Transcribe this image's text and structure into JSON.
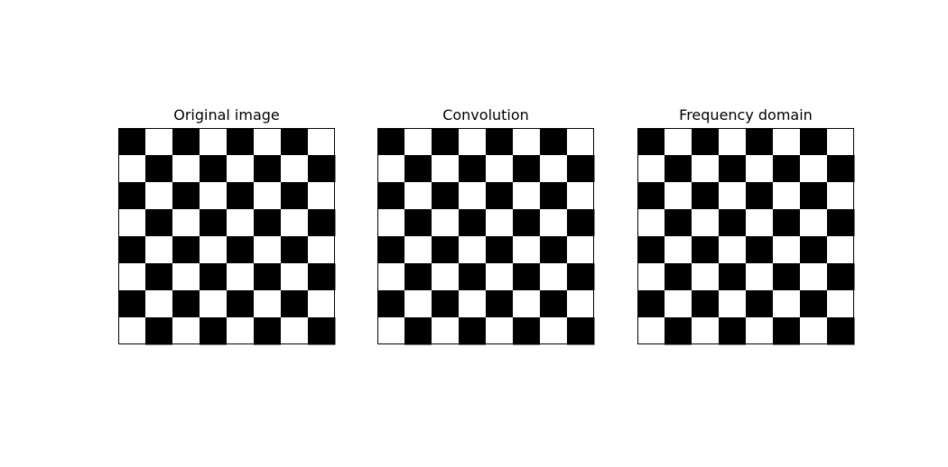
{
  "chart_data": [
    {
      "type": "heatmap",
      "title": "Original image",
      "grid_size": [
        8,
        8
      ],
      "colormap": "gray",
      "values": [
        [
          0,
          1,
          0,
          1,
          0,
          1,
          0,
          1
        ],
        [
          1,
          0,
          1,
          0,
          1,
          0,
          1,
          0
        ],
        [
          0,
          1,
          0,
          1,
          0,
          1,
          0,
          1
        ],
        [
          1,
          0,
          1,
          0,
          1,
          0,
          1,
          0
        ],
        [
          0,
          1,
          0,
          1,
          0,
          1,
          0,
          1
        ],
        [
          1,
          0,
          1,
          0,
          1,
          0,
          1,
          0
        ],
        [
          0,
          1,
          0,
          1,
          0,
          1,
          0,
          1
        ],
        [
          1,
          0,
          1,
          0,
          1,
          0,
          1,
          0
        ]
      ],
      "axes_ticks": false
    },
    {
      "type": "heatmap",
      "title": "Convolution",
      "grid_size": [
        8,
        8
      ],
      "colormap": "gray",
      "values": [
        [
          0,
          1,
          0,
          1,
          0,
          1,
          0,
          1
        ],
        [
          1,
          0,
          1,
          0,
          1,
          0,
          1,
          0
        ],
        [
          0,
          1,
          0,
          1,
          0,
          1,
          0,
          1
        ],
        [
          1,
          0,
          1,
          0,
          1,
          0,
          1,
          0
        ],
        [
          0,
          1,
          0,
          1,
          0,
          1,
          0,
          1
        ],
        [
          1,
          0,
          1,
          0,
          1,
          0,
          1,
          0
        ],
        [
          0,
          1,
          0,
          1,
          0,
          1,
          0,
          1
        ],
        [
          1,
          0,
          1,
          0,
          1,
          0,
          1,
          0
        ]
      ],
      "axes_ticks": false
    },
    {
      "type": "heatmap",
      "title": "Frequency domain",
      "grid_size": [
        8,
        8
      ],
      "colormap": "gray",
      "values": [
        [
          0,
          1,
          0,
          1,
          0,
          1,
          0,
          1
        ],
        [
          1,
          0,
          1,
          0,
          1,
          0,
          1,
          0
        ],
        [
          0,
          1,
          0,
          1,
          0,
          1,
          0,
          1
        ],
        [
          1,
          0,
          1,
          0,
          1,
          0,
          1,
          0
        ],
        [
          0,
          1,
          0,
          1,
          0,
          1,
          0,
          1
        ],
        [
          1,
          0,
          1,
          0,
          1,
          0,
          1,
          0
        ],
        [
          0,
          1,
          0,
          1,
          0,
          1,
          0,
          1
        ],
        [
          1,
          0,
          1,
          0,
          1,
          0,
          1,
          0
        ]
      ],
      "axes_ticks": false
    }
  ],
  "colors": {
    "low": "#000000",
    "high": "#ffffff",
    "frame": "#000000"
  }
}
